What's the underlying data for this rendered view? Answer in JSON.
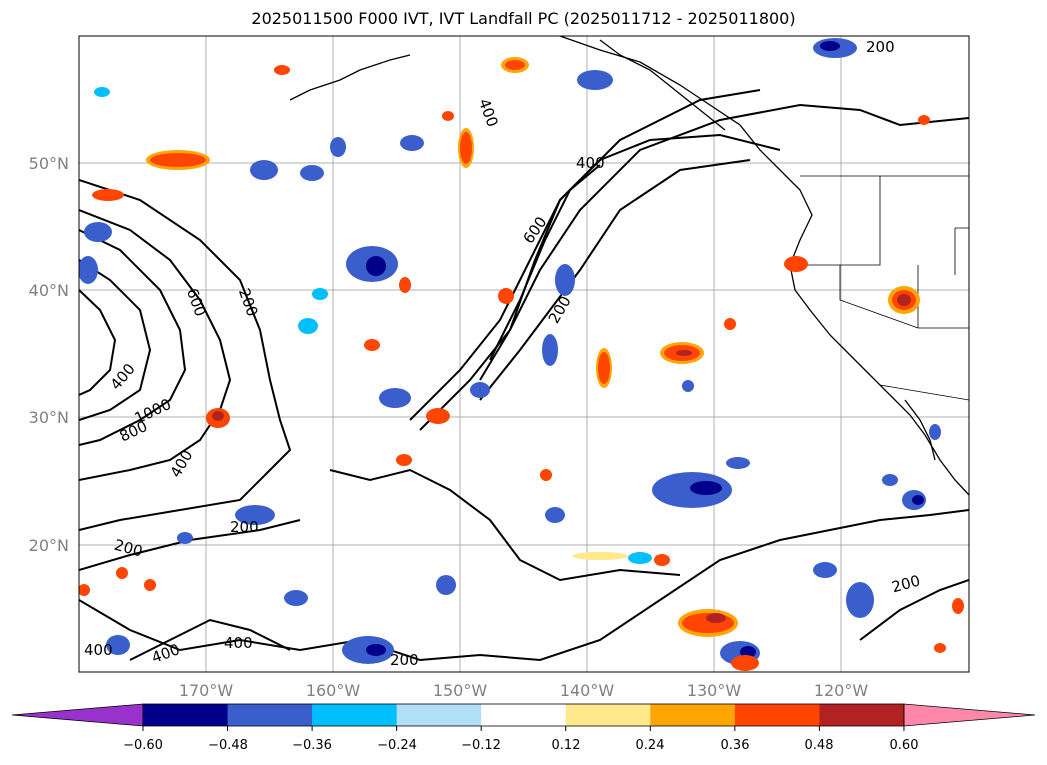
{
  "title": "2025011500 F000 IVT, IVT Landfall PC (2025011712 - 2025011800)",
  "map": {
    "lat_labels": [
      "50°N",
      "40°N",
      "30°N",
      "20°N"
    ],
    "lon_labels": [
      "170°W",
      "160°W",
      "150°W",
      "140°W",
      "130°W",
      "120°W"
    ],
    "grid": true
  },
  "ivt_contours": {
    "labels": [
      "200",
      "400",
      "600",
      "200",
      "400",
      "600",
      "200",
      "400",
      "800",
      "1000",
      "400",
      "200",
      "200",
      "400",
      "400",
      "400",
      "200",
      "200",
      "200"
    ]
  },
  "colorbar": {
    "ticks": [
      "−0.60",
      "−0.48",
      "−0.36",
      "−0.24",
      "−0.12",
      "0.12",
      "0.24",
      "0.36",
      "0.48",
      "0.60"
    ],
    "colors": [
      "#9932cc",
      "#00008b",
      "#3a5fcd",
      "#00bfff",
      "#b0e0f6",
      "#ffffff",
      "#ffe98a",
      "#ffa500",
      "#ff4500",
      "#b22222",
      "#ff88aa"
    ]
  }
}
